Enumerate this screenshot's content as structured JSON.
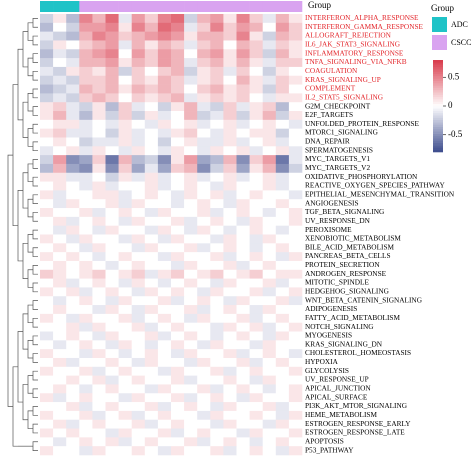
{
  "chart_data": {
    "type": "heatmap",
    "annotation_label": "Group",
    "legend_title": "Group",
    "groups": [
      {
        "name": "ADC",
        "color": "#1fc3c7"
      },
      {
        "name": "CSCC",
        "color": "#d9a3f0"
      }
    ],
    "column_groups": [
      "ADC",
      "ADC",
      "ADC",
      "CSCC",
      "CSCC",
      "CSCC",
      "CSCC",
      "CSCC",
      "CSCC",
      "CSCC",
      "CSCC",
      "CSCC",
      "CSCC",
      "CSCC",
      "CSCC",
      "CSCC",
      "CSCC",
      "CSCC",
      "CSCC",
      "CSCC"
    ],
    "rows": [
      "INTERFERON_ALPHA_RESPONSE",
      "INTERFERON_GAMMA_RESPONSE",
      "ALLOGRAFT_REJECTION",
      "IL6_JAK_STAT3_SIGNALING",
      "INFLAMMATORY_RESPONSE",
      "TNFA_SIGNALING_VIA_NFKB",
      "COAGULATION",
      "KRAS_SIGNALING_UP",
      "COMPLEMENT",
      "IL2_STAT5_SIGNALING",
      "G2M_CHECKPOINT",
      "E2F_TARGETS",
      "UNFOLDED_PROTEIN_RESPONSE",
      "MTORC1_SIGNALING",
      "DNA_REPAIR",
      "SPERMATOGENESIS",
      "MYC_TARGETS_V1",
      "MYC_TARGETS_V2",
      "OXIDATIVE_PHOSPHORYLATION",
      "REACTIVE_OXYGEN_SPECIES_PATHWAY",
      "EPITHELIAL_MESENCHYMAL_TRANSITION",
      "ANGIOGENESIS",
      "TGF_BETA_SIGNALING",
      "UV_RESPONSE_DN",
      "PEROXISOME",
      "XENOBIOTIC_METABOLISM",
      "BILE_ACID_METABOLISM",
      "PANCREAS_BETA_CELLS",
      "PROTEIN_SECRETION",
      "ANDROGEN_RESPONSE",
      "MITOTIC_SPINDLE",
      "HEDGEHOG_SIGNALING",
      "WNT_BETA_CATENIN_SIGNALING",
      "ADIPOGENESIS",
      "FATTY_ACID_METABOLISM",
      "NOTCH_SIGNALING",
      "MYOGENESIS",
      "KRAS_SIGNALING_DN",
      "CHOLESTEROL_HOMEOSTASIS",
      "HYPOXIA",
      "GLYCOLYSIS",
      "UV_RESPONSE_UP",
      "APICAL_JUNCTION",
      "APICAL_SURFACE",
      "PI3K_AKT_MTOR_SIGNALING",
      "HEME_METABOLISM",
      "ESTROGEN_RESPONSE_EARLY",
      "ESTROGEN_RESPONSE_LATE",
      "APOPTOSIS",
      "P53_PATHWAY"
    ],
    "row_label_colors": [
      "#e3262b",
      "#e3262b",
      "#e3262b",
      "#e3262b",
      "#e3262b",
      "#e3262b",
      "#e3262b",
      "#e3262b",
      "#e3262b",
      "#e3262b",
      "#000000",
      "#000000",
      "#000000",
      "#000000",
      "#000000",
      "#000000",
      "#000000",
      "#000000",
      "#000000",
      "#000000",
      "#000000",
      "#000000",
      "#000000",
      "#000000",
      "#000000",
      "#000000",
      "#000000",
      "#000000",
      "#000000",
      "#000000",
      "#000000",
      "#000000",
      "#000000",
      "#000000",
      "#000000",
      "#000000",
      "#000000",
      "#000000",
      "#000000",
      "#000000",
      "#000000",
      "#000000",
      "#000000",
      "#000000",
      "#000000",
      "#000000",
      "#000000",
      "#000000",
      "#000000",
      "#000000"
    ],
    "values": [
      [
        -0.2,
        0.1,
        -0.3,
        0.5,
        0.3,
        0.6,
        -0.1,
        0.4,
        0.2,
        0.5,
        0.6,
        -0.2,
        0.3,
        0.4,
        0.1,
        0.5,
        0.2,
        -0.1,
        0.3,
        0.1
      ],
      [
        -0.3,
        0.0,
        -0.2,
        0.4,
        0.4,
        0.5,
        0.1,
        0.5,
        0.3,
        0.6,
        0.5,
        -0.1,
        0.2,
        0.5,
        0.2,
        0.4,
        0.3,
        0.0,
        0.4,
        0.2
      ],
      [
        -0.1,
        -0.2,
        -0.3,
        0.3,
        0.5,
        0.4,
        0.2,
        0.3,
        0.4,
        0.5,
        0.4,
        0.1,
        0.3,
        0.3,
        0.2,
        0.5,
        0.1,
        -0.2,
        0.3,
        0.2
      ],
      [
        -0.2,
        0.1,
        0.0,
        0.2,
        0.3,
        0.4,
        -0.1,
        0.3,
        0.1,
        0.3,
        0.2,
        -0.1,
        0.2,
        0.3,
        0.0,
        0.3,
        0.2,
        -0.1,
        0.2,
        0.1
      ],
      [
        -0.3,
        -0.1,
        -0.2,
        0.3,
        0.4,
        0.5,
        0.0,
        0.4,
        0.2,
        0.4,
        0.3,
        0.0,
        0.3,
        0.4,
        0.1,
        0.4,
        0.2,
        -0.2,
        0.3,
        0.1
      ],
      [
        -0.2,
        0.0,
        -0.1,
        0.3,
        0.3,
        0.4,
        0.1,
        0.3,
        0.2,
        0.4,
        0.3,
        -0.1,
        0.2,
        0.3,
        0.1,
        0.3,
        0.1,
        -0.1,
        0.2,
        0.2
      ],
      [
        -0.1,
        -0.2,
        0.1,
        0.2,
        0.1,
        0.3,
        -0.2,
        0.2,
        0.0,
        0.2,
        0.3,
        -0.2,
        0.1,
        0.2,
        -0.1,
        0.2,
        0.0,
        -0.2,
        0.1,
        0.0
      ],
      [
        -0.2,
        -0.1,
        -0.2,
        0.2,
        0.2,
        0.3,
        0.0,
        0.2,
        0.1,
        0.3,
        0.2,
        -0.1,
        0.1,
        0.2,
        0.0,
        0.3,
        0.1,
        -0.1,
        0.2,
        0.1
      ],
      [
        -0.3,
        -0.2,
        -0.1,
        0.3,
        0.2,
        0.3,
        0.1,
        0.3,
        0.2,
        0.3,
        0.2,
        0.0,
        0.2,
        0.3,
        0.1,
        0.2,
        0.1,
        -0.2,
        0.2,
        0.0
      ],
      [
        -0.2,
        -0.1,
        -0.2,
        0.2,
        0.3,
        0.2,
        0.0,
        0.2,
        0.1,
        0.2,
        0.3,
        -0.1,
        0.1,
        0.2,
        0.1,
        0.2,
        0.0,
        -0.1,
        0.1,
        0.1
      ],
      [
        0.1,
        0.2,
        -0.1,
        -0.2,
        0.1,
        -0.3,
        0.2,
        -0.1,
        0.0,
        -0.2,
        0.1,
        0.3,
        -0.1,
        -0.2,
        0.2,
        -0.1,
        0.1,
        0.2,
        -0.3,
        0.0
      ],
      [
        0.1,
        0.3,
        -0.1,
        -0.3,
        0.1,
        -0.2,
        0.2,
        -0.2,
        0.1,
        -0.1,
        0.0,
        0.3,
        -0.2,
        -0.1,
        0.2,
        -0.2,
        0.1,
        0.3,
        -0.2,
        0.1
      ],
      [
        0.0,
        0.1,
        0.1,
        -0.1,
        0.0,
        -0.1,
        0.1,
        0.0,
        -0.1,
        0.1,
        0.0,
        0.1,
        -0.1,
        0.0,
        0.1,
        -0.1,
        0.0,
        0.1,
        0.0,
        -0.1
      ],
      [
        0.1,
        0.2,
        -0.1,
        -0.1,
        0.0,
        -0.2,
        0.1,
        -0.1,
        0.0,
        -0.1,
        0.1,
        0.2,
        0.0,
        -0.1,
        0.1,
        0.0,
        0.1,
        0.1,
        -0.2,
        0.0
      ],
      [
        0.0,
        0.1,
        0.0,
        -0.2,
        -0.1,
        -0.1,
        0.1,
        -0.1,
        0.0,
        -0.2,
        0.0,
        0.1,
        -0.1,
        -0.1,
        0.1,
        -0.1,
        0.0,
        0.1,
        -0.1,
        0.0
      ],
      [
        -0.1,
        0.0,
        0.1,
        -0.1,
        0.1,
        0.0,
        -0.1,
        0.1,
        0.0,
        -0.1,
        0.1,
        0.0,
        -0.1,
        0.1,
        0.0,
        0.1,
        -0.1,
        0.0,
        0.1,
        -0.1
      ],
      [
        -0.2,
        0.4,
        -0.5,
        -0.4,
        0.2,
        -0.6,
        0.3,
        -0.3,
        -0.2,
        -0.5,
        0.1,
        0.4,
        -0.4,
        -0.3,
        0.3,
        -0.5,
        0.2,
        0.4,
        -0.6,
        -0.1
      ],
      [
        -0.3,
        0.3,
        -0.4,
        -0.5,
        0.1,
        -0.5,
        0.2,
        -0.4,
        -0.1,
        -0.4,
        0.2,
        0.3,
        -0.5,
        -0.2,
        0.2,
        -0.4,
        0.1,
        0.3,
        -0.5,
        -0.2
      ],
      [
        0.1,
        0.1,
        -0.1,
        -0.1,
        0.0,
        -0.2,
        0.1,
        -0.1,
        0.1,
        -0.1,
        0.0,
        0.1,
        -0.1,
        0.0,
        0.1,
        -0.1,
        0.0,
        0.1,
        -0.1,
        0.0
      ],
      [
        0.0,
        0.1,
        0.0,
        -0.1,
        0.1,
        -0.1,
        0.0,
        0.0,
        0.1,
        -0.1,
        0.0,
        0.1,
        0.0,
        -0.1,
        0.1,
        0.0,
        0.0,
        0.1,
        -0.1,
        0.0
      ],
      [
        0.1,
        -0.1,
        0.0,
        0.0,
        0.1,
        0.1,
        -0.1,
        0.0,
        0.1,
        0.0,
        -0.1,
        0.1,
        0.0,
        0.1,
        -0.1,
        0.0,
        0.1,
        0.0,
        0.0,
        -0.1
      ],
      [
        0.0,
        -0.1,
        0.1,
        0.0,
        0.0,
        0.1,
        -0.1,
        0.1,
        0.0,
        0.0,
        -0.1,
        0.0,
        0.1,
        0.0,
        -0.1,
        0.1,
        0.0,
        0.0,
        0.1,
        0.0
      ],
      [
        0.1,
        0.0,
        0.0,
        0.1,
        -0.1,
        0.0,
        0.1,
        0.0,
        -0.1,
        0.1,
        0.0,
        0.0,
        0.1,
        -0.1,
        0.0,
        0.1,
        0.0,
        -0.1,
        0.0,
        0.1
      ],
      [
        0.0,
        0.1,
        -0.1,
        0.0,
        0.1,
        0.0,
        -0.1,
        0.1,
        0.0,
        0.0,
        0.1,
        -0.1,
        0.0,
        0.1,
        0.0,
        -0.1,
        0.1,
        0.0,
        0.0,
        0.1
      ],
      [
        0.0,
        -0.1,
        0.1,
        0.0,
        -0.1,
        0.1,
        0.0,
        0.0,
        -0.1,
        0.1,
        0.0,
        -0.1,
        0.1,
        0.0,
        -0.1,
        0.0,
        0.1,
        0.0,
        -0.1,
        0.0
      ],
      [
        0.1,
        0.0,
        -0.1,
        0.1,
        0.0,
        0.0,
        -0.1,
        0.1,
        0.0,
        -0.1,
        0.1,
        0.0,
        0.0,
        -0.1,
        0.1,
        0.0,
        -0.1,
        0.1,
        0.0,
        0.0
      ],
      [
        0.0,
        0.1,
        0.0,
        -0.1,
        0.1,
        0.0,
        0.0,
        -0.1,
        0.1,
        0.0,
        0.0,
        0.1,
        -0.1,
        0.0,
        0.1,
        0.0,
        -0.1,
        0.0,
        0.1,
        0.0
      ],
      [
        0.1,
        0.0,
        0.1,
        0.0,
        -0.1,
        0.0,
        0.1,
        0.0,
        0.0,
        -0.1,
        0.1,
        0.0,
        0.0,
        0.1,
        -0.1,
        0.0,
        0.1,
        0.0,
        -0.1,
        0.1
      ],
      [
        0.0,
        0.1,
        0.0,
        0.1,
        0.0,
        -0.1,
        0.0,
        0.1,
        0.0,
        0.0,
        -0.1,
        0.1,
        0.0,
        0.0,
        0.1,
        -0.1,
        0.0,
        0.1,
        0.0,
        0.0
      ],
      [
        0.2,
        0.1,
        0.0,
        0.1,
        0.2,
        0.0,
        0.1,
        0.2,
        -0.1,
        0.1,
        0.2,
        0.0,
        0.1,
        0.2,
        0.0,
        0.1,
        0.2,
        0.0,
        0.1,
        0.1
      ],
      [
        0.0,
        0.1,
        -0.1,
        0.0,
        0.1,
        0.0,
        -0.1,
        0.1,
        0.0,
        -0.1,
        0.0,
        0.1,
        0.0,
        -0.1,
        0.1,
        0.0,
        0.0,
        0.1,
        -0.1,
        0.0
      ],
      [
        0.1,
        0.0,
        0.1,
        -0.1,
        0.0,
        0.1,
        0.0,
        -0.1,
        0.1,
        0.0,
        0.1,
        0.0,
        -0.1,
        0.1,
        0.0,
        0.0,
        0.1,
        -0.1,
        0.0,
        0.1
      ],
      [
        0.0,
        -0.1,
        0.0,
        0.1,
        0.0,
        -0.1,
        0.1,
        0.0,
        0.0,
        0.1,
        -0.1,
        0.0,
        0.1,
        0.0,
        -0.1,
        0.1,
        0.0,
        0.0,
        0.1,
        -0.1
      ],
      [
        0.0,
        0.1,
        0.0,
        0.0,
        -0.1,
        0.1,
        0.0,
        -0.1,
        0.1,
        0.0,
        0.0,
        0.1,
        -0.1,
        0.0,
        0.1,
        0.0,
        -0.1,
        0.1,
        0.0,
        0.0
      ],
      [
        0.1,
        0.0,
        -0.1,
        0.1,
        0.0,
        0.0,
        0.1,
        -0.1,
        0.0,
        0.1,
        0.0,
        -0.1,
        0.1,
        0.0,
        0.0,
        0.1,
        -0.1,
        0.0,
        0.1,
        0.0
      ],
      [
        0.0,
        0.0,
        0.1,
        -0.1,
        0.1,
        0.0,
        0.0,
        0.1,
        -0.1,
        0.0,
        0.1,
        0.0,
        0.0,
        -0.1,
        0.1,
        0.0,
        0.1,
        -0.1,
        0.0,
        0.1
      ],
      [
        -0.1,
        0.0,
        0.1,
        0.0,
        -0.1,
        0.1,
        0.0,
        0.0,
        0.1,
        -0.1,
        0.0,
        0.1,
        0.0,
        -0.1,
        0.0,
        0.1,
        0.0,
        -0.1,
        0.1,
        0.0
      ],
      [
        0.0,
        -0.1,
        0.0,
        0.1,
        0.0,
        -0.1,
        0.1,
        0.0,
        -0.1,
        0.0,
        0.1,
        0.0,
        -0.1,
        0.1,
        0.0,
        0.0,
        -0.1,
        0.1,
        0.0,
        0.0
      ],
      [
        0.1,
        0.0,
        0.0,
        -0.1,
        0.1,
        0.0,
        -0.1,
        0.0,
        0.1,
        0.0,
        -0.1,
        0.1,
        0.0,
        0.0,
        0.1,
        -0.1,
        0.0,
        0.1,
        0.0,
        -0.1
      ],
      [
        0.0,
        0.1,
        -0.1,
        0.0,
        0.0,
        0.1,
        0.0,
        -0.1,
        0.1,
        0.0,
        0.0,
        -0.1,
        0.1,
        0.0,
        0.0,
        0.1,
        -0.1,
        0.0,
        0.1,
        0.0
      ],
      [
        0.1,
        0.0,
        0.0,
        0.1,
        -0.1,
        0.0,
        0.1,
        0.0,
        0.0,
        -0.1,
        0.1,
        0.0,
        0.0,
        0.1,
        -0.1,
        0.0,
        0.1,
        0.0,
        0.0,
        0.1
      ],
      [
        0.0,
        0.0,
        0.1,
        0.0,
        0.1,
        -0.1,
        0.0,
        0.1,
        0.0,
        0.0,
        0.1,
        -0.1,
        0.0,
        0.0,
        0.1,
        0.0,
        -0.1,
        0.1,
        0.0,
        0.0
      ],
      [
        0.0,
        0.1,
        0.0,
        -0.1,
        0.0,
        0.1,
        0.0,
        0.0,
        -0.1,
        0.1,
        0.0,
        0.0,
        0.1,
        -0.1,
        0.0,
        0.1,
        0.0,
        -0.1,
        0.0,
        0.1
      ],
      [
        0.1,
        -0.1,
        0.0,
        0.1,
        0.0,
        0.0,
        -0.1,
        0.1,
        0.0,
        0.0,
        0.1,
        -0.1,
        0.0,
        0.1,
        0.0,
        -0.1,
        0.1,
        0.0,
        0.0,
        0.1
      ],
      [
        0.0,
        0.0,
        0.1,
        -0.1,
        0.0,
        0.1,
        0.0,
        0.0,
        0.1,
        -0.1,
        0.0,
        0.1,
        0.0,
        -0.1,
        0.1,
        0.0,
        0.0,
        0.1,
        -0.1,
        0.0
      ],
      [
        0.1,
        0.0,
        0.0,
        0.1,
        -0.1,
        0.0,
        0.1,
        -0.1,
        0.0,
        0.1,
        0.0,
        0.0,
        -0.1,
        0.1,
        0.0,
        0.0,
        0.1,
        0.0,
        -0.1,
        0.1
      ],
      [
        0.0,
        0.1,
        -0.1,
        0.0,
        0.1,
        0.0,
        0.0,
        0.1,
        -0.1,
        0.0,
        0.1,
        0.0,
        0.0,
        -0.1,
        0.1,
        0.0,
        0.0,
        -0.1,
        0.1,
        0.0
      ],
      [
        0.1,
        0.0,
        0.1,
        0.0,
        0.0,
        -0.1,
        0.1,
        0.0,
        0.0,
        0.1,
        -0.1,
        0.0,
        0.1,
        0.0,
        0.0,
        -0.1,
        0.1,
        0.0,
        0.0,
        0.1
      ],
      [
        0.0,
        -0.1,
        0.0,
        0.1,
        0.0,
        0.1,
        -0.1,
        0.0,
        0.1,
        0.0,
        0.0,
        0.1,
        -0.1,
        0.0,
        0.1,
        0.0,
        -0.1,
        0.0,
        0.1,
        0.0
      ],
      [
        0.1,
        0.0,
        0.0,
        -0.1,
        0.1,
        0.0,
        0.0,
        0.1,
        0.0,
        -0.1,
        0.1,
        0.0,
        0.0,
        0.1,
        -0.1,
        0.0,
        0.1,
        0.0,
        -0.1,
        0.1
      ]
    ],
    "colors": {
      "low": "#3b4a8c",
      "mid": "#ffffff",
      "high": "#d8394a"
    },
    "clim": [
      -0.8,
      0.8
    ],
    "colorbar_ticks": [
      0.5,
      0,
      -0.5
    ]
  }
}
